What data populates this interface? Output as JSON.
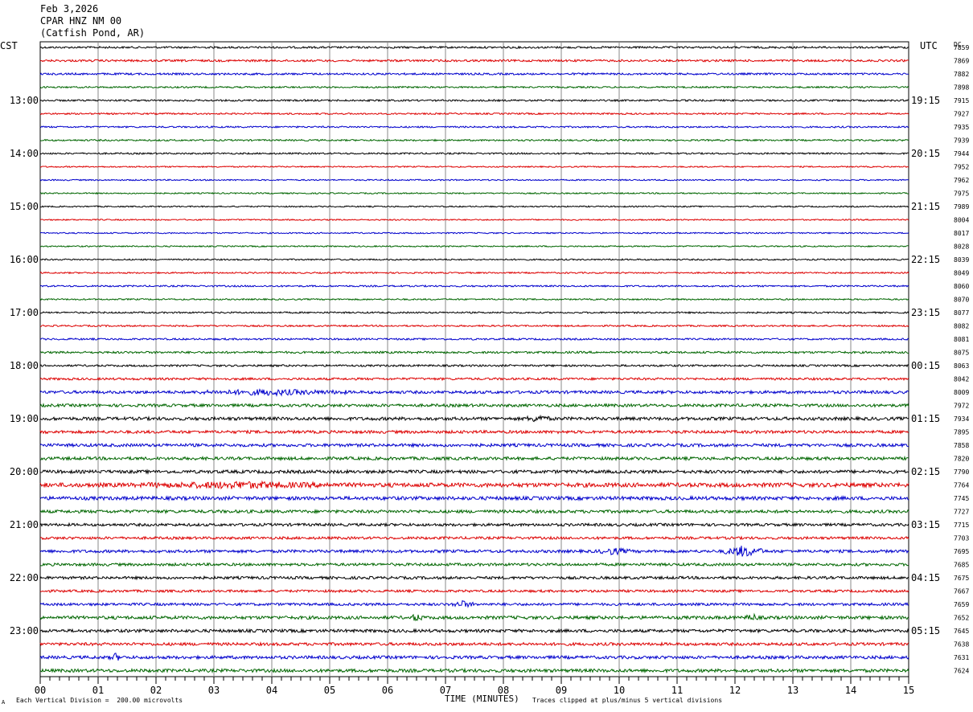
{
  "header": {
    "date": "Feb 3,2026",
    "station": "CPAR HNZ NM 00",
    "location": "(Catfish Pond, AR)"
  },
  "chart_data": {
    "type": "line",
    "left_axis_label": "CST",
    "right_axis_label": "UTC",
    "dc_label": "DC",
    "xlabel": "TIME (MINUTES)",
    "xlim": [
      0,
      15
    ],
    "x_ticks": [
      "00",
      "01",
      "02",
      "03",
      "04",
      "05",
      "06",
      "07",
      "08",
      "09",
      "10",
      "11",
      "12",
      "13",
      "14",
      "15"
    ],
    "left_hour_labels": [
      "13:00",
      "14:00",
      "15:00",
      "16:00",
      "17:00",
      "18:00",
      "19:00",
      "20:00",
      "21:00",
      "22:00",
      "23:00"
    ],
    "right_hour_labels": [
      "19:15",
      "20:15",
      "21:15",
      "22:15",
      "23:15",
      "00:15",
      "01:15",
      "02:15",
      "03:15",
      "04:15",
      "05:15"
    ],
    "hour_label_trace_indices": [
      4,
      8,
      12,
      16,
      20,
      24,
      28,
      32,
      36,
      40,
      44
    ],
    "trace_colors": [
      "#000000",
      "#dd0000",
      "#0000cc",
      "#006600"
    ],
    "dc_values": [
      "7859",
      "7869",
      "7882",
      "7898",
      "7915",
      "7927",
      "7935",
      "7939",
      "7944",
      "7952",
      "7962",
      "7975",
      "7989",
      "8004",
      "8017",
      "8028",
      "8039",
      "8049",
      "8060",
      "8070",
      "8077",
      "8082",
      "8081",
      "8075",
      "8063",
      "8042",
      "8009",
      "7972",
      "7934",
      "7895",
      "7858",
      "7820",
      "7790",
      "7764",
      "7745",
      "7727",
      "7715",
      "7703",
      "7695",
      "7685",
      "7675",
      "7667",
      "7659",
      "7652",
      "7645",
      "7638",
      "7631",
      "7624"
    ],
    "trace_noise_levels": [
      1.2,
      1.3,
      1.2,
      1.0,
      1.1,
      1.0,
      1.0,
      1.0,
      1.0,
      0.8,
      0.8,
      0.8,
      0.8,
      0.8,
      0.8,
      0.8,
      0.9,
      0.9,
      1.0,
      0.9,
      1.0,
      1.0,
      1.1,
      1.3,
      1.2,
      1.4,
      1.8,
      1.8,
      2.0,
      1.8,
      1.9,
      1.9,
      2.0,
      2.6,
      2.2,
      1.9,
      1.7,
      1.6,
      1.8,
      1.7,
      1.7,
      1.5,
      1.6,
      2.0,
      1.9,
      1.8,
      1.9,
      2.0
    ],
    "events": [
      {
        "trace": 26,
        "start_min": 2.7,
        "end_min": 5.3,
        "amplitude": 2.5
      },
      {
        "trace": 28,
        "start_min": 8.4,
        "end_min": 8.8,
        "amplitude": 3.5
      },
      {
        "trace": 33,
        "start_min": 1.8,
        "end_min": 5.0,
        "amplitude": 2.5
      },
      {
        "trace": 38,
        "start_min": 11.8,
        "end_min": 12.5,
        "amplitude": 6
      },
      {
        "trace": 38,
        "start_min": 9.6,
        "end_min": 10.2,
        "amplitude": 3
      },
      {
        "trace": 42,
        "start_min": 7.1,
        "end_min": 7.5,
        "amplitude": 3.5
      },
      {
        "trace": 43,
        "start_min": 6.4,
        "end_min": 6.6,
        "amplitude": 4
      },
      {
        "trace": 43,
        "start_min": 12.2,
        "end_min": 12.4,
        "amplitude": 4
      },
      {
        "trace": 46,
        "start_min": 1.2,
        "end_min": 1.4,
        "amplitude": 4
      }
    ]
  },
  "footer": {
    "scale_note": "Each Vertical Division =  200.00 microvolts",
    "clip_note": "Traces clipped at plus/minus 5 vertical divisions",
    "corner_mark": "A"
  }
}
